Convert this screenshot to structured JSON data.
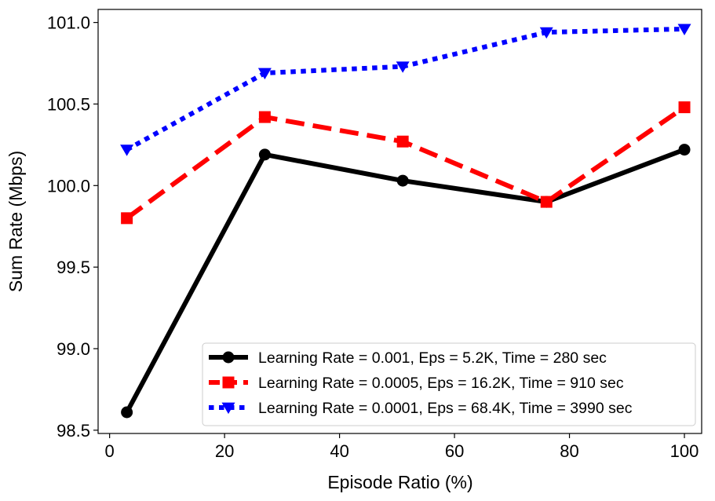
{
  "chart_data": {
    "type": "line",
    "xlabel": "Episode Ratio (%)",
    "ylabel": "Sum Rate (Mbps)",
    "xlim": [
      -2,
      103
    ],
    "ylim": [
      98.48,
      101.08
    ],
    "xticks": [
      0,
      20,
      40,
      60,
      80,
      100
    ],
    "xtick_labels": [
      "0",
      "20",
      "40",
      "60",
      "80",
      "100"
    ],
    "yticks": [
      98.5,
      99.0,
      99.5,
      100.0,
      100.5,
      101.0
    ],
    "ytick_labels": [
      "98.5",
      "99.0",
      "99.5",
      "100.0",
      "100.5",
      "101.0"
    ],
    "grid": false,
    "legend_position": "lower-right",
    "series": [
      {
        "name": "Learning Rate = 0.001, Eps = 5.2K, Time = 280 sec",
        "color": "#000000",
        "linestyle": "solid",
        "marker": "circle",
        "x": [
          3,
          27,
          51,
          76,
          100
        ],
        "y": [
          98.61,
          100.19,
          100.03,
          99.9,
          100.22
        ]
      },
      {
        "name": "Learning Rate = 0.0005, Eps = 16.2K, Time = 910 sec",
        "color": "#ff0000",
        "linestyle": "dashed",
        "marker": "square",
        "x": [
          3,
          27,
          51,
          76,
          100
        ],
        "y": [
          99.8,
          100.42,
          100.27,
          99.9,
          100.48
        ]
      },
      {
        "name": "Learning Rate = 0.0001, Eps = 68.4K, Time = 3990 sec",
        "color": "#0000ff",
        "linestyle": "dotted",
        "marker": "triangle-down",
        "x": [
          3,
          27,
          51,
          76,
          100
        ],
        "y": [
          100.22,
          100.69,
          100.73,
          100.94,
          100.96
        ]
      }
    ]
  }
}
